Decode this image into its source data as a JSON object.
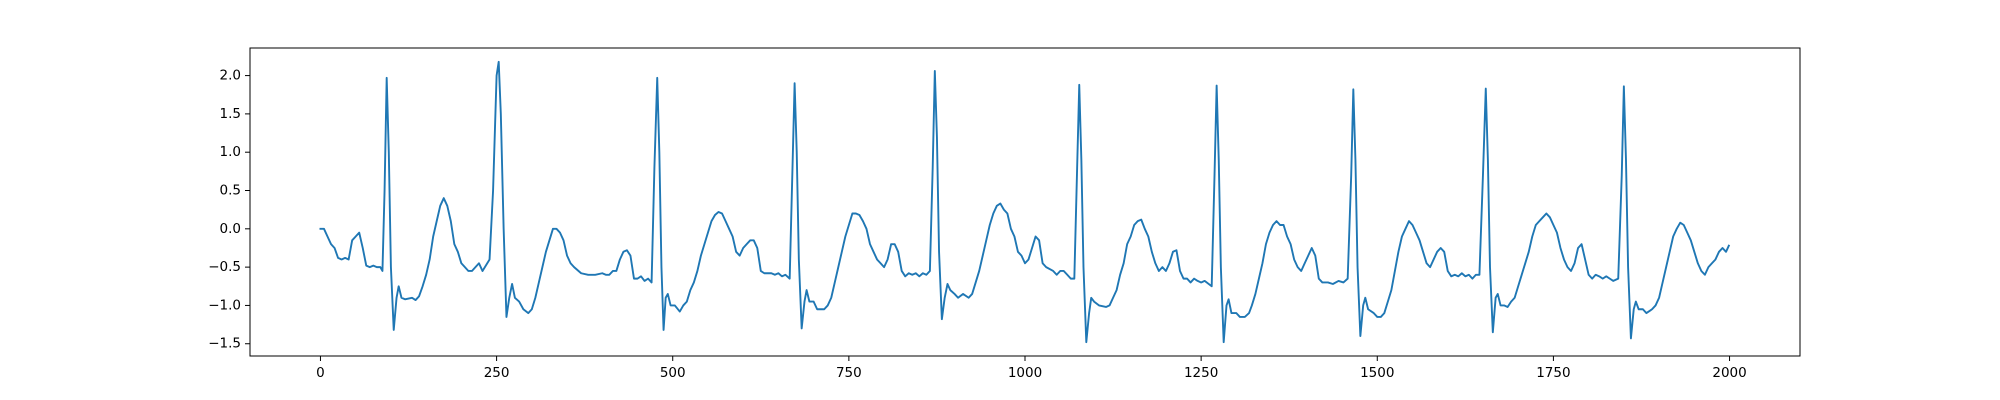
{
  "chart_data": {
    "type": "line",
    "x": [
      0,
      5,
      10,
      15,
      20,
      25,
      30,
      35,
      40,
      45,
      50,
      55,
      60,
      65,
      70,
      75,
      80,
      85,
      88,
      91,
      94,
      97,
      100,
      104,
      108,
      111,
      115,
      120,
      130,
      135,
      140,
      145,
      150,
      155,
      160,
      165,
      170,
      175,
      180,
      185,
      190,
      195,
      200,
      205,
      210,
      215,
      220,
      225,
      230,
      240,
      245,
      250,
      253,
      256,
      260,
      264,
      268,
      272,
      276,
      282,
      288,
      295,
      300,
      305,
      310,
      315,
      320,
      325,
      330,
      335,
      340,
      345,
      350,
      355,
      360,
      370,
      380,
      390,
      400,
      405,
      410,
      415,
      420,
      425,
      430,
      435,
      440,
      445,
      450,
      455,
      460,
      465,
      470,
      474,
      478,
      481,
      484,
      487,
      490,
      493,
      497,
      503,
      510,
      515,
      520,
      525,
      530,
      535,
      540,
      545,
      550,
      555,
      560,
      565,
      570,
      575,
      580,
      585,
      590,
      595,
      600,
      605,
      610,
      615,
      620,
      625,
      630,
      640,
      645,
      650,
      655,
      660,
      666,
      670,
      673,
      676,
      679,
      683,
      687,
      690,
      694,
      700,
      705,
      715,
      720,
      725,
      730,
      735,
      740,
      745,
      750,
      755,
      760,
      765,
      770,
      775,
      780,
      785,
      790,
      795,
      800,
      805,
      810,
      815,
      820,
      825,
      830,
      835,
      840,
      845,
      850,
      855,
      860,
      865,
      869,
      872,
      875,
      878,
      882,
      886,
      890,
      894,
      900,
      905,
      912,
      920,
      925,
      930,
      935,
      940,
      945,
      950,
      955,
      960,
      965,
      970,
      975,
      980,
      985,
      990,
      995,
      1000,
      1005,
      1010,
      1015,
      1020,
      1025,
      1030,
      1040,
      1045,
      1050,
      1055,
      1060,
      1065,
      1070,
      1074,
      1077,
      1080,
      1083,
      1087,
      1091,
      1094,
      1098,
      1105,
      1115,
      1120,
      1125,
      1130,
      1135,
      1140,
      1145,
      1150,
      1155,
      1160,
      1165,
      1170,
      1175,
      1180,
      1185,
      1190,
      1195,
      1200,
      1205,
      1210,
      1215,
      1220,
      1225,
      1230,
      1235,
      1240,
      1245,
      1250,
      1255,
      1265,
      1269,
      1272,
      1275,
      1278,
      1282,
      1286,
      1289,
      1293,
      1300,
      1305,
      1312,
      1318,
      1322,
      1327,
      1332,
      1337,
      1342,
      1347,
      1352,
      1357,
      1362,
      1367,
      1372,
      1377,
      1382,
      1387,
      1392,
      1397,
      1402,
      1407,
      1412,
      1417,
      1422,
      1430,
      1437,
      1445,
      1452,
      1458,
      1463,
      1466,
      1469,
      1472,
      1476,
      1480,
      1483,
      1487,
      1495,
      1500,
      1505,
      1510,
      1515,
      1520,
      1525,
      1530,
      1535,
      1540,
      1545,
      1550,
      1555,
      1560,
      1565,
      1570,
      1575,
      1580,
      1585,
      1590,
      1595,
      1600,
      1605,
      1610,
      1615,
      1620,
      1625,
      1630,
      1635,
      1640,
      1645,
      1650,
      1654,
      1657,
      1660,
      1664,
      1668,
      1671,
      1675,
      1680,
      1685,
      1690,
      1695,
      1700,
      1705,
      1710,
      1715,
      1720,
      1725,
      1730,
      1735,
      1740,
      1745,
      1750,
      1755,
      1760,
      1765,
      1770,
      1775,
      1780,
      1785,
      1790,
      1795,
      1800,
      1805,
      1810,
      1815,
      1820,
      1825,
      1830,
      1835,
      1842,
      1847,
      1850,
      1853,
      1856,
      1860,
      1864,
      1867,
      1871,
      1877,
      1882,
      1890,
      1895,
      1900,
      1905,
      1910,
      1915,
      1920,
      1925,
      1930,
      1935,
      1940,
      1945,
      1950,
      1955,
      1960,
      1965,
      1970,
      1975,
      1980,
      1985,
      1990,
      1995,
      1999
    ],
    "series": [
      {
        "color": "#1f77b4",
        "values": [
          0,
          0,
          -0.1,
          -0.2,
          -0.25,
          -0.38,
          -0.4,
          -0.38,
          -0.4,
          -0.15,
          -0.1,
          -0.05,
          -0.25,
          -0.48,
          -0.5,
          -0.48,
          -0.5,
          -0.5,
          -0.55,
          0.5,
          1.97,
          1.0,
          -0.5,
          -1.32,
          -0.9,
          -0.75,
          -0.9,
          -0.92,
          -0.9,
          -0.93,
          -0.88,
          -0.75,
          -0.6,
          -0.4,
          -0.1,
          0.1,
          0.3,
          0.4,
          0.3,
          0.1,
          -0.2,
          -0.3,
          -0.45,
          -0.5,
          -0.55,
          -0.55,
          -0.5,
          -0.45,
          -0.55,
          -0.4,
          0.5,
          2.0,
          2.18,
          1.5,
          0,
          -1.15,
          -0.9,
          -0.72,
          -0.9,
          -0.95,
          -1.05,
          -1.1,
          -1.05,
          -0.9,
          -0.7,
          -0.5,
          -0.3,
          -0.15,
          0,
          0,
          -0.05,
          -0.15,
          -0.35,
          -0.45,
          -0.5,
          -0.58,
          -0.6,
          -0.6,
          -0.58,
          -0.6,
          -0.6,
          -0.55,
          -0.55,
          -0.4,
          -0.3,
          -0.28,
          -0.35,
          -0.65,
          -0.65,
          -0.62,
          -0.68,
          -0.65,
          -0.7,
          0.8,
          1.97,
          1.0,
          -0.5,
          -1.32,
          -0.9,
          -0.85,
          -1.0,
          -1.0,
          -1.08,
          -1.0,
          -0.95,
          -0.8,
          -0.7,
          -0.55,
          -0.35,
          -0.2,
          -0.05,
          0.1,
          0.18,
          0.22,
          0.2,
          0.1,
          0,
          -0.1,
          -0.3,
          -0.35,
          -0.25,
          -0.2,
          -0.15,
          -0.15,
          -0.25,
          -0.55,
          -0.58,
          -0.58,
          -0.6,
          -0.58,
          -0.62,
          -0.6,
          -0.65,
          0.8,
          1.9,
          1.0,
          -0.4,
          -1.3,
          -0.95,
          -0.8,
          -0.95,
          -0.95,
          -1.05,
          -1.05,
          -1.0,
          -0.9,
          -0.7,
          -0.5,
          -0.3,
          -0.1,
          0.05,
          0.2,
          0.2,
          0.18,
          0.1,
          0,
          -0.2,
          -0.3,
          -0.4,
          -0.45,
          -0.5,
          -0.4,
          -0.2,
          -0.2,
          -0.3,
          -0.55,
          -0.62,
          -0.58,
          -0.6,
          -0.58,
          -0.62,
          -0.58,
          -0.6,
          -0.55,
          0.8,
          2.06,
          1.2,
          -0.3,
          -1.18,
          -0.9,
          -0.72,
          -0.8,
          -0.85,
          -0.9,
          -0.85,
          -0.9,
          -0.85,
          -0.7,
          -0.55,
          -0.35,
          -0.15,
          0.05,
          0.2,
          0.3,
          0.33,
          0.25,
          0.2,
          0,
          -0.1,
          -0.3,
          -0.35,
          -0.45,
          -0.4,
          -0.25,
          -0.1,
          -0.15,
          -0.45,
          -0.5,
          -0.55,
          -0.6,
          -0.55,
          -0.55,
          -0.6,
          -0.65,
          -0.65,
          0.8,
          1.88,
          0.9,
          -0.5,
          -1.48,
          -1.1,
          -0.9,
          -0.95,
          -1.0,
          -1.02,
          -1.0,
          -0.9,
          -0.8,
          -0.6,
          -0.45,
          -0.2,
          -0.1,
          0.05,
          0.1,
          0.12,
          0,
          -0.1,
          -0.3,
          -0.45,
          -0.55,
          -0.5,
          -0.55,
          -0.45,
          -0.3,
          -0.28,
          -0.55,
          -0.65,
          -0.65,
          -0.7,
          -0.65,
          -0.68,
          -0.7,
          -0.68,
          -0.75,
          0.7,
          1.87,
          0.9,
          -0.5,
          -1.48,
          -1.0,
          -0.92,
          -1.1,
          -1.1,
          -1.15,
          -1.15,
          -1.1,
          -1.0,
          -0.85,
          -0.65,
          -0.45,
          -0.2,
          -0.05,
          0.05,
          0.1,
          0.05,
          0.05,
          -0.1,
          -0.2,
          -0.4,
          -0.5,
          -0.55,
          -0.45,
          -0.35,
          -0.25,
          -0.35,
          -0.65,
          -0.7,
          -0.7,
          -0.72,
          -0.68,
          -0.7,
          -0.65,
          0.7,
          1.82,
          0.9,
          -0.5,
          -1.4,
          -1.0,
          -0.9,
          -1.05,
          -1.1,
          -1.15,
          -1.15,
          -1.1,
          -0.95,
          -0.8,
          -0.55,
          -0.3,
          -0.1,
          0,
          0.1,
          0.05,
          -0.05,
          -0.15,
          -0.3,
          -0.45,
          -0.5,
          -0.4,
          -0.3,
          -0.25,
          -0.3,
          -0.55,
          -0.62,
          -0.6,
          -0.62,
          -0.58,
          -0.62,
          -0.6,
          -0.65,
          -0.6,
          -0.6,
          0.7,
          1.83,
          0.9,
          -0.5,
          -1.35,
          -0.9,
          -0.85,
          -1.0,
          -1.0,
          -1.02,
          -0.95,
          -0.9,
          -0.75,
          -0.6,
          -0.45,
          -0.3,
          -0.1,
          0.05,
          0.1,
          0.15,
          0.2,
          0.15,
          0.05,
          -0.05,
          -0.25,
          -0.4,
          -0.5,
          -0.55,
          -0.45,
          -0.25,
          -0.2,
          -0.4,
          -0.6,
          -0.65,
          -0.6,
          -0.62,
          -0.65,
          -0.62,
          -0.65,
          -0.68,
          -0.65,
          0.7,
          1.86,
          0.9,
          -0.5,
          -1.43,
          -1.05,
          -0.95,
          -1.05,
          -1.05,
          -1.1,
          -1.05,
          -1.0,
          -0.9,
          -0.7,
          -0.5,
          -0.3,
          -0.1,
          0,
          0.08,
          0.05,
          -0.05,
          -0.15,
          -0.3,
          -0.45,
          -0.55,
          -0.6,
          -0.5,
          -0.45,
          -0.4,
          -0.3,
          -0.25,
          -0.3,
          -0.22
        ]
      }
    ],
    "xlim": [
      -100,
      2100
    ],
    "ylim": [
      -1.66,
      2.36
    ],
    "xticks": [
      0,
      250,
      500,
      750,
      1000,
      1250,
      1500,
      1750,
      2000
    ],
    "yticks": [
      {
        "value": -1.5,
        "label": "−1.5"
      },
      {
        "value": -1,
        "label": "−1.0"
      },
      {
        "value": -0.5,
        "label": "−0.5"
      },
      {
        "value": 0,
        "label": "0.0"
      },
      0.5,
      {
        "value": 1,
        "label": "1.0"
      },
      1.5,
      {
        "value": 2,
        "label": "2.0"
      }
    ],
    "grid": false
  }
}
